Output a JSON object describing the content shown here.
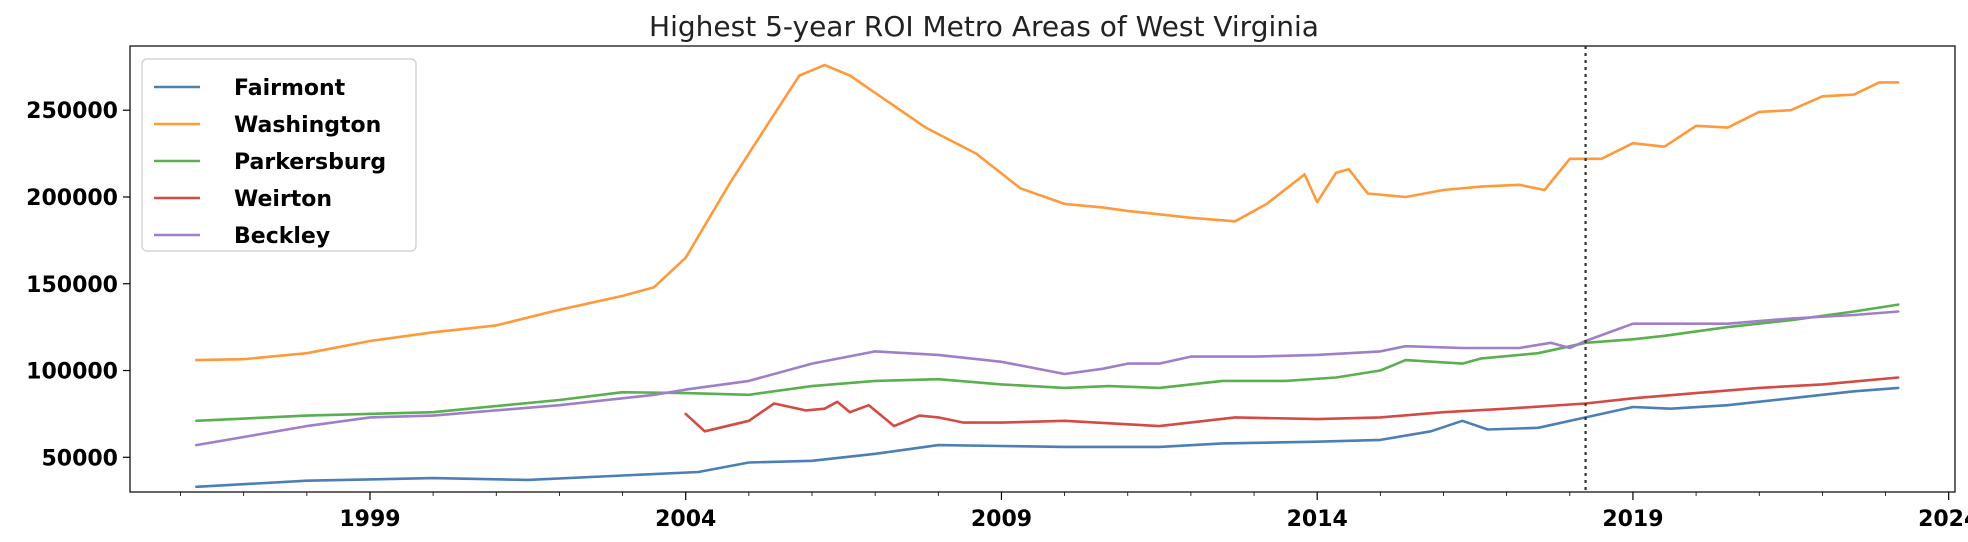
{
  "chart_data": {
    "type": "line",
    "title": "Highest 5-year ROI Metro Areas of West Virginia",
    "xlabel": "",
    "ylabel": "",
    "xlim": [
      1995.2,
      2024.1
    ],
    "ylim": [
      30000,
      287000
    ],
    "x_ticks": [
      1999,
      2004,
      2009,
      2014,
      2019,
      2024
    ],
    "y_ticks": [
      50000,
      100000,
      150000,
      200000,
      250000
    ],
    "grid": false,
    "legend_position": "top-left",
    "vertical_marker_x": 2018.25,
    "series": [
      {
        "name": "Fairmont",
        "color": "#4c7fb5",
        "points": [
          [
            1996.25,
            33000
          ],
          [
            1998,
            36500
          ],
          [
            2000,
            38000
          ],
          [
            2001.5,
            37000
          ],
          [
            2003,
            39500
          ],
          [
            2004.2,
            41500
          ],
          [
            2005,
            47000
          ],
          [
            2006,
            48000
          ],
          [
            2007,
            52000
          ],
          [
            2008,
            57000
          ],
          [
            2009,
            56500
          ],
          [
            2010,
            56000
          ],
          [
            2011.5,
            56000
          ],
          [
            2012.5,
            58000
          ],
          [
            2014,
            59000
          ],
          [
            2015,
            60000
          ],
          [
            2015.8,
            65000
          ],
          [
            2016.3,
            71000
          ],
          [
            2016.7,
            66000
          ],
          [
            2017.5,
            67000
          ],
          [
            2018.25,
            73000
          ],
          [
            2019,
            79000
          ],
          [
            2019.6,
            78000
          ],
          [
            2020.5,
            80000
          ],
          [
            2021.5,
            84000
          ],
          [
            2022.5,
            88000
          ],
          [
            2023.2,
            90000
          ]
        ]
      },
      {
        "name": "Washington",
        "color": "#ff9a3c",
        "points": [
          [
            1996.25,
            106000
          ],
          [
            1997,
            106500
          ],
          [
            1998,
            110000
          ],
          [
            1999,
            117000
          ],
          [
            2000,
            122000
          ],
          [
            2001,
            126000
          ],
          [
            2002,
            135000
          ],
          [
            2003,
            143000
          ],
          [
            2003.5,
            148000
          ],
          [
            2004,
            165000
          ],
          [
            2004.7,
            208000
          ],
          [
            2005.3,
            242000
          ],
          [
            2005.8,
            270000
          ],
          [
            2006.2,
            276000
          ],
          [
            2006.6,
            270000
          ],
          [
            2007,
            260000
          ],
          [
            2007.8,
            240000
          ],
          [
            2008.6,
            225000
          ],
          [
            2009.3,
            205000
          ],
          [
            2010,
            196000
          ],
          [
            2010.6,
            194000
          ],
          [
            2011,
            192000
          ],
          [
            2011.5,
            190000
          ],
          [
            2012,
            188000
          ],
          [
            2012.7,
            186000
          ],
          [
            2013.2,
            196000
          ],
          [
            2013.8,
            213000
          ],
          [
            2014,
            197000
          ],
          [
            2014.3,
            214000
          ],
          [
            2014.5,
            216000
          ],
          [
            2014.8,
            202000
          ],
          [
            2015.4,
            200000
          ],
          [
            2016,
            204000
          ],
          [
            2016.6,
            206000
          ],
          [
            2017.2,
            207000
          ],
          [
            2017.6,
            204000
          ],
          [
            2018,
            222000
          ],
          [
            2018.5,
            222000
          ],
          [
            2019,
            231000
          ],
          [
            2019.5,
            229000
          ],
          [
            2020,
            241000
          ],
          [
            2020.5,
            240000
          ],
          [
            2021,
            249000
          ],
          [
            2021.5,
            250000
          ],
          [
            2022,
            258000
          ],
          [
            2022.5,
            259000
          ],
          [
            2022.9,
            266000
          ],
          [
            2023.2,
            266000
          ]
        ]
      },
      {
        "name": "Parkersburg",
        "color": "#5aaf4e",
        "points": [
          [
            1996.25,
            71000
          ],
          [
            1998,
            74000
          ],
          [
            2000,
            76000
          ],
          [
            2002,
            83000
          ],
          [
            2003,
            87500
          ],
          [
            2004,
            87000
          ],
          [
            2005,
            86000
          ],
          [
            2006,
            91000
          ],
          [
            2007,
            94000
          ],
          [
            2008,
            95000
          ],
          [
            2009,
            92000
          ],
          [
            2010,
            90000
          ],
          [
            2010.7,
            91000
          ],
          [
            2011.5,
            90000
          ],
          [
            2012.5,
            94000
          ],
          [
            2013.5,
            94000
          ],
          [
            2014.3,
            96000
          ],
          [
            2015,
            100000
          ],
          [
            2015.4,
            106000
          ],
          [
            2016.3,
            104000
          ],
          [
            2016.6,
            107000
          ],
          [
            2017.5,
            110000
          ],
          [
            2018.25,
            116000
          ],
          [
            2019,
            118000
          ],
          [
            2019.5,
            120000
          ],
          [
            2020.5,
            125000
          ],
          [
            2021.5,
            129000
          ],
          [
            2022.5,
            134000
          ],
          [
            2023.2,
            138000
          ]
        ]
      },
      {
        "name": "Weirton",
        "color": "#d44a44",
        "points": [
          [
            2004,
            75000
          ],
          [
            2004.3,
            65000
          ],
          [
            2005,
            71000
          ],
          [
            2005.4,
            81000
          ],
          [
            2005.9,
            77000
          ],
          [
            2006.2,
            78000
          ],
          [
            2006.4,
            82000
          ],
          [
            2006.6,
            76000
          ],
          [
            2006.9,
            80000
          ],
          [
            2007.3,
            68000
          ],
          [
            2007.7,
            74000
          ],
          [
            2008,
            73000
          ],
          [
            2008.4,
            70000
          ],
          [
            2009,
            70000
          ],
          [
            2010,
            71000
          ],
          [
            2011,
            69000
          ],
          [
            2011.5,
            68000
          ],
          [
            2012.7,
            73000
          ],
          [
            2014,
            72000
          ],
          [
            2015,
            73000
          ],
          [
            2016,
            76000
          ],
          [
            2017,
            78000
          ],
          [
            2018.25,
            81000
          ],
          [
            2019,
            84000
          ],
          [
            2020,
            87000
          ],
          [
            2021,
            90000
          ],
          [
            2022,
            92000
          ],
          [
            2023.2,
            96000
          ]
        ]
      },
      {
        "name": "Beckley",
        "color": "#9f7fca",
        "points": [
          [
            1996.25,
            57000
          ],
          [
            1998,
            68000
          ],
          [
            1999,
            73000
          ],
          [
            2000,
            74000
          ],
          [
            2002,
            80000
          ],
          [
            2003.5,
            86000
          ],
          [
            2004,
            89000
          ],
          [
            2005,
            94000
          ],
          [
            2006,
            104000
          ],
          [
            2007,
            111000
          ],
          [
            2008,
            109000
          ],
          [
            2009,
            105000
          ],
          [
            2010,
            98000
          ],
          [
            2010.6,
            101000
          ],
          [
            2011,
            104000
          ],
          [
            2011.5,
            104000
          ],
          [
            2012,
            108000
          ],
          [
            2013,
            108000
          ],
          [
            2014,
            109000
          ],
          [
            2015,
            111000
          ],
          [
            2015.4,
            114000
          ],
          [
            2016.3,
            113000
          ],
          [
            2017.2,
            113000
          ],
          [
            2017.7,
            116000
          ],
          [
            2018,
            113000
          ],
          [
            2018.25,
            117000
          ],
          [
            2019,
            127000
          ],
          [
            2019.6,
            127000
          ],
          [
            2020.5,
            127000
          ],
          [
            2021.5,
            130000
          ],
          [
            2022.5,
            132000
          ],
          [
            2023.2,
            134000
          ]
        ]
      }
    ]
  }
}
